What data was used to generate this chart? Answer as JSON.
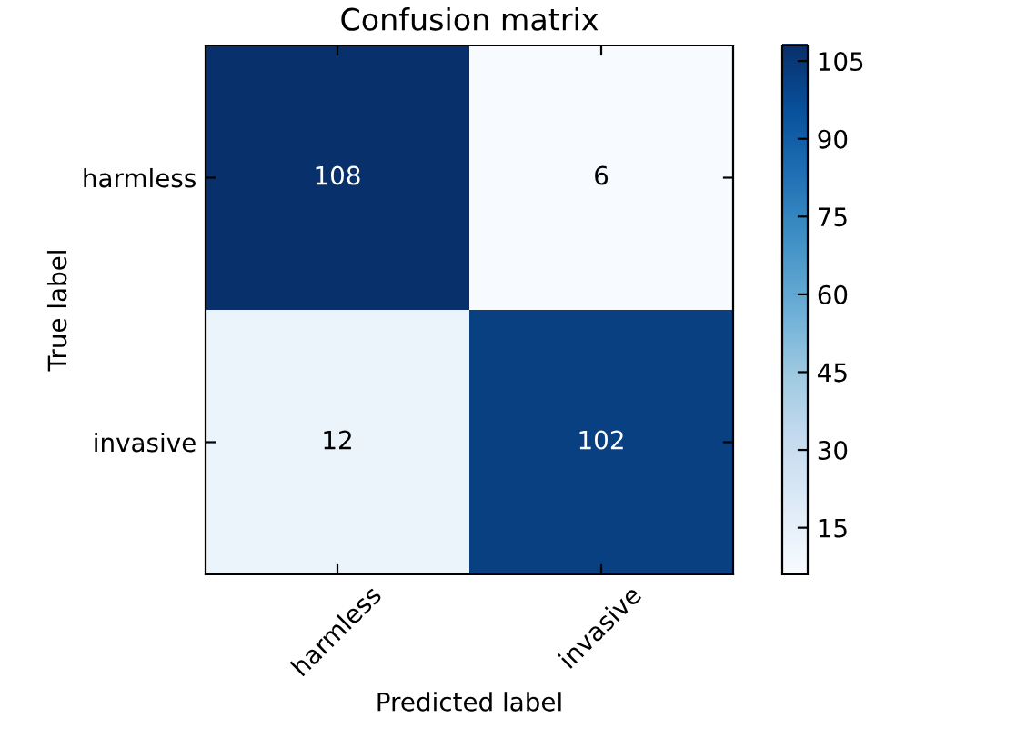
{
  "chart_data": {
    "type": "heatmap",
    "title": "Confusion matrix",
    "xlabel": "Predicted label",
    "ylabel": "True label",
    "categories": [
      "harmless",
      "invasive"
    ],
    "y_categories": [
      "harmless",
      "invasive"
    ],
    "cells": [
      [
        108,
        6
      ],
      [
        12,
        102
      ]
    ],
    "data_labels": true,
    "clim": [
      6,
      108
    ],
    "cticks": [
      15,
      30,
      45,
      60,
      75,
      90,
      105
    ]
  }
}
